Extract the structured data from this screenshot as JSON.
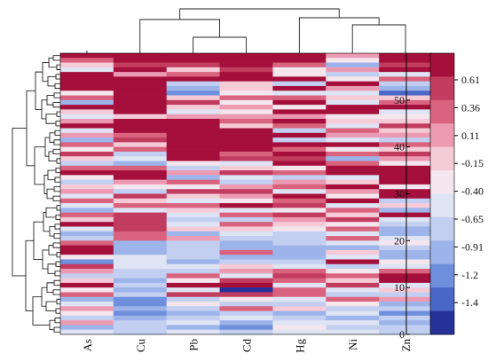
{
  "chart_data": {
    "type": "heatmap",
    "title": "",
    "xlabel": "",
    "ylabel": "",
    "columns": [
      "As",
      "Cu",
      "Pb",
      "Cd",
      "Hg",
      "Ni",
      "Zn"
    ],
    "row_count": 60,
    "y_ticks": [
      0,
      10,
      20,
      30,
      40,
      50
    ],
    "ylim": [
      0,
      60
    ],
    "color_scale": {
      "labels": [
        "0.61",
        "0.36",
        "0.11",
        "-0.15",
        "-0.40",
        "-0.65",
        "-0.91",
        "-1.2",
        "-1.4"
      ],
      "colors": [
        "#a50f3c",
        "#c13c5e",
        "#d9637f",
        "#ec9ab2",
        "#f6cbd8",
        "#f5e6ee",
        "#dfe4f4",
        "#c2cff0",
        "#9db4ea",
        "#6f8fdc",
        "#4a66c6",
        "#26319a"
      ]
    },
    "dendrogram": {
      "top": "present",
      "left": "present"
    },
    "values": [
      [
        0.61,
        0.61,
        0.61,
        0.61,
        0.61,
        0.1,
        0.61
      ],
      [
        0.3,
        0.61,
        0.61,
        0.61,
        0.61,
        -0.3,
        0.61
      ],
      [
        -0.2,
        0.4,
        0.4,
        0.61,
        0.2,
        -0.8,
        0.45
      ],
      [
        -0.55,
        0.61,
        -0.05,
        0.55,
        -0.35,
        0.0,
        0.61
      ],
      [
        0.61,
        0.1,
        0.3,
        0.61,
        -0.25,
        -0.6,
        -0.4
      ],
      [
        0.61,
        0.61,
        0.61,
        0.61,
        0.61,
        -0.3,
        0.2
      ],
      [
        0.61,
        0.61,
        -0.6,
        -0.1,
        -0.65,
        0.61,
        -0.7
      ],
      [
        0.61,
        0.61,
        -0.95,
        -0.05,
        0.61,
        0.1,
        -0.9
      ],
      [
        -0.3,
        0.61,
        -1.0,
        -0.35,
        -0.4,
        -0.4,
        -1.3
      ],
      [
        0.25,
        0.61,
        -0.2,
        0.2,
        0.35,
        -0.2,
        -0.15
      ],
      [
        -0.85,
        0.61,
        0.4,
        -0.3,
        0.61,
        -0.5,
        0.3
      ],
      [
        0.61,
        0.61,
        -0.1,
        0.1,
        -0.25,
        0.61,
        0.61
      ],
      [
        -0.1,
        0.61,
        -0.45,
        -0.35,
        0.61,
        0.61,
        -0.45
      ],
      [
        -0.5,
        -0.2,
        0.05,
        0.15,
        0.15,
        -0.25,
        -0.3
      ],
      [
        0.15,
        0.61,
        0.61,
        0.3,
        0.61,
        -0.05,
        -0.1
      ],
      [
        0.61,
        0.61,
        0.61,
        -0.15,
        0.2,
        -0.55,
        0.4
      ],
      [
        -0.4,
        0.61,
        0.61,
        0.61,
        -0.6,
        0.25,
        -0.05
      ],
      [
        0.0,
        0.2,
        0.61,
        0.61,
        0.61,
        0.1,
        0.15
      ],
      [
        -0.95,
        0.45,
        0.61,
        0.61,
        -0.7,
        -0.5,
        -0.6
      ],
      [
        0.2,
        -0.05,
        0.61,
        0.61,
        0.61,
        0.61,
        0.35
      ],
      [
        -0.35,
        0.3,
        0.61,
        0.61,
        0.25,
        -0.35,
        -0.2
      ],
      [
        0.4,
        -0.6,
        0.61,
        0.35,
        0.61,
        0.2,
        0.5
      ],
      [
        -0.2,
        -0.4,
        0.61,
        0.5,
        0.4,
        -0.8,
        0.1
      ],
      [
        -0.65,
        -0.85,
        -0.3,
        -0.45,
        0.61,
        0.3,
        -0.3
      ],
      [
        0.3,
        0.3,
        -0.6,
        -0.1,
        -0.35,
        0.61,
        0.61
      ],
      [
        0.61,
        0.61,
        0.05,
        0.45,
        0.2,
        0.61,
        0.61
      ],
      [
        -0.3,
        0.61,
        -0.85,
        -0.5,
        -0.6,
        -0.4,
        0.61
      ],
      [
        -0.7,
        0.15,
        0.35,
        -0.6,
        0.05,
        -0.15,
        0.61
      ],
      [
        -0.15,
        -0.3,
        -0.25,
        0.0,
        0.3,
        0.61,
        -0.3
      ],
      [
        0.1,
        -0.65,
        0.5,
        0.4,
        -0.5,
        0.15,
        0.61
      ],
      [
        -0.4,
        0.5,
        -0.1,
        0.05,
        0.61,
        -0.3,
        0.61
      ],
      [
        0.2,
        -0.1,
        -0.55,
        -0.3,
        0.2,
        0.61,
        -0.6
      ],
      [
        -0.55,
        0.25,
        0.3,
        0.61,
        0.4,
        -0.5,
        -0.2
      ],
      [
        -0.8,
        -0.5,
        -0.15,
        -0.4,
        -0.25,
        0.3,
        -0.9
      ],
      [
        0.35,
        0.45,
        -0.4,
        0.2,
        0.5,
        -0.2,
        0.61
      ],
      [
        -0.2,
        0.5,
        -0.7,
        -0.6,
        0.1,
        0.4,
        -0.4
      ],
      [
        0.61,
        0.4,
        -0.5,
        0.3,
        -0.1,
        -0.35,
        -0.7
      ],
      [
        -0.4,
        0.55,
        -0.2,
        -0.1,
        -0.3,
        0.25,
        -0.9
      ],
      [
        -0.95,
        0.35,
        -0.85,
        -0.55,
        -0.6,
        -0.45,
        -0.95
      ],
      [
        -0.6,
        0.3,
        0.1,
        -0.7,
        -0.75,
        0.2,
        -0.4
      ],
      [
        0.2,
        -0.9,
        -0.6,
        -0.8,
        -0.75,
        -0.55,
        -0.25
      ],
      [
        0.61,
        -0.8,
        -0.75,
        -0.95,
        -0.8,
        -0.8,
        -0.6
      ],
      [
        0.61,
        -0.95,
        -0.7,
        0.25,
        -0.8,
        -0.2,
        -0.8
      ],
      [
        -0.3,
        -0.5,
        -0.75,
        -0.9,
        -0.8,
        -0.5,
        -0.95
      ],
      [
        -1.0,
        -0.45,
        -0.8,
        -0.6,
        -0.7,
        0.61,
        -0.3
      ],
      [
        0.4,
        -0.5,
        -0.55,
        -0.2,
        -0.5,
        -0.65,
        -0.55
      ],
      [
        0.15,
        -0.65,
        -0.6,
        0.1,
        0.3,
        -0.3,
        0.35
      ],
      [
        -0.6,
        -0.7,
        0.2,
        -0.55,
        0.4,
        0.3,
        0.61
      ],
      [
        -0.2,
        -0.85,
        -0.3,
        0.4,
        0.25,
        -0.1,
        0.61
      ],
      [
        0.61,
        -0.6,
        0.61,
        0.61,
        -0.4,
        0.4,
        -0.5
      ],
      [
        -0.35,
        -0.8,
        -0.4,
        -1.4,
        0.35,
        -0.45,
        -0.2
      ],
      [
        0.3,
        -0.75,
        0.4,
        0.5,
        0.3,
        -0.6,
        -0.7
      ],
      [
        -0.9,
        -1.0,
        -0.7,
        -0.3,
        -0.4,
        0.2,
        0.05
      ],
      [
        -0.4,
        -1.0,
        -0.35,
        -0.6,
        -0.75,
        -0.3,
        -0.95
      ],
      [
        0.1,
        -0.95,
        -0.6,
        0.2,
        -0.2,
        -0.7,
        -0.7
      ],
      [
        -0.3,
        -1.0,
        -0.85,
        -0.7,
        -0.8,
        -0.5,
        -1.0
      ],
      [
        -0.6,
        -0.9,
        -0.75,
        -0.5,
        -0.6,
        -0.8,
        -0.75
      ],
      [
        0.05,
        -0.7,
        -0.4,
        -0.8,
        -0.55,
        -0.4,
        -0.85
      ],
      [
        -0.8,
        -0.6,
        -0.9,
        -1.1,
        -0.3,
        -0.65,
        -0.6
      ],
      [
        -0.5,
        -0.75,
        -0.5,
        -0.6,
        -0.45,
        -0.55,
        -0.7
      ]
    ]
  }
}
